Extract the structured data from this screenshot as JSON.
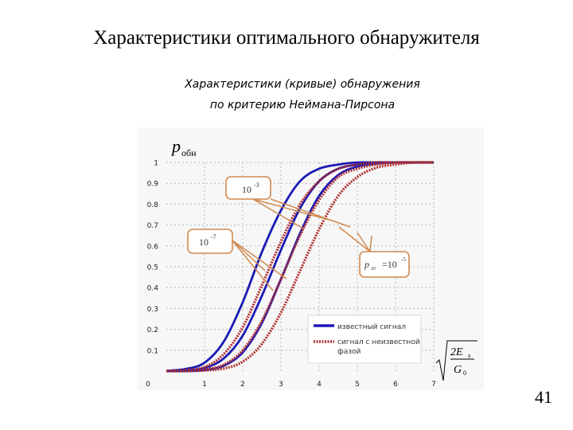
{
  "slide": {
    "title": "Характеристики оптимального обнаружителя",
    "subtitle_line1": "Характеристики (кривые) обнаружения",
    "subtitle_line2": "по критерию Неймана-Пирсона",
    "page_number": "41"
  },
  "chart_data": {
    "type": "line",
    "ylabel": "p",
    "ylabel_sub": "обн",
    "xlabel_formula": {
      "numerator": "2E",
      "numerator_sub": "s",
      "denominator": "G",
      "denominator_sub": "0"
    },
    "xlim": [
      0,
      7
    ],
    "ylim": [
      0,
      1
    ],
    "x_ticks": [
      "0",
      "1",
      "2",
      "3",
      "4",
      "5",
      "6",
      "7"
    ],
    "y_ticks": [
      "0.1",
      "0.2",
      "0.3",
      "0.4",
      "0.5",
      "0.6",
      "0.7",
      "0.8",
      "0.9",
      "1"
    ],
    "grid": true,
    "legend": {
      "placement": "bottom-right",
      "entries": [
        {
          "label": "известный сигнал",
          "color": "#1a1ab5",
          "style": "solid"
        },
        {
          "label": "сигнал с неизвестной фазой",
          "color": "#b03030",
          "style": "dotted"
        }
      ]
    },
    "annotations": [
      {
        "text": "10",
        "exponent": "-3"
      },
      {
        "text": "10",
        "exponent": "-7"
      },
      {
        "text": "=10",
        "prefix": "p",
        "prefix_sub": "лт",
        "exponent": "-5"
      }
    ],
    "x": [
      0,
      0.5,
      1,
      1.5,
      2,
      2.5,
      3,
      3.5,
      4,
      4.5,
      5,
      5.5,
      6,
      6.5,
      7
    ],
    "series": [
      {
        "group": "известный сигнал",
        "values": [
          0.001,
          0.01,
          0.04,
          0.14,
          0.33,
          0.57,
          0.77,
          0.91,
          0.97,
          0.99,
          1.0,
          1.0,
          1.0,
          1.0,
          1.0
        ],
        "color": "#1a1ab5"
      },
      {
        "group": "известный сигнал",
        "values": [
          0.0,
          0.003,
          0.015,
          0.06,
          0.17,
          0.36,
          0.58,
          0.78,
          0.91,
          0.97,
          0.99,
          1.0,
          1.0,
          1.0,
          1.0
        ],
        "color": "#1a1ab5"
      },
      {
        "group": "известный сигнал",
        "values": [
          0.0,
          0.0,
          0.005,
          0.025,
          0.09,
          0.23,
          0.44,
          0.66,
          0.84,
          0.94,
          0.98,
          0.995,
          1.0,
          1.0,
          1.0
        ],
        "color": "#1a1ab5"
      },
      {
        "group": "сигнал с неизвестной фазой",
        "values": [
          0.001,
          0.005,
          0.02,
          0.08,
          0.21,
          0.41,
          0.62,
          0.8,
          0.91,
          0.97,
          0.99,
          1.0,
          1.0,
          1.0,
          1.0
        ],
        "color": "#b03030"
      },
      {
        "group": "сигнал с неизвестной фазой",
        "values": [
          0.0,
          0.002,
          0.008,
          0.03,
          0.1,
          0.24,
          0.44,
          0.65,
          0.82,
          0.93,
          0.97,
          0.99,
          1.0,
          1.0,
          1.0
        ],
        "color": "#b03030"
      },
      {
        "group": "сигнал с неизвестной фазой",
        "values": [
          0.0,
          0.0,
          0.003,
          0.012,
          0.045,
          0.13,
          0.28,
          0.48,
          0.68,
          0.84,
          0.93,
          0.975,
          0.99,
          1.0,
          1.0
        ],
        "color": "#b03030"
      }
    ]
  }
}
